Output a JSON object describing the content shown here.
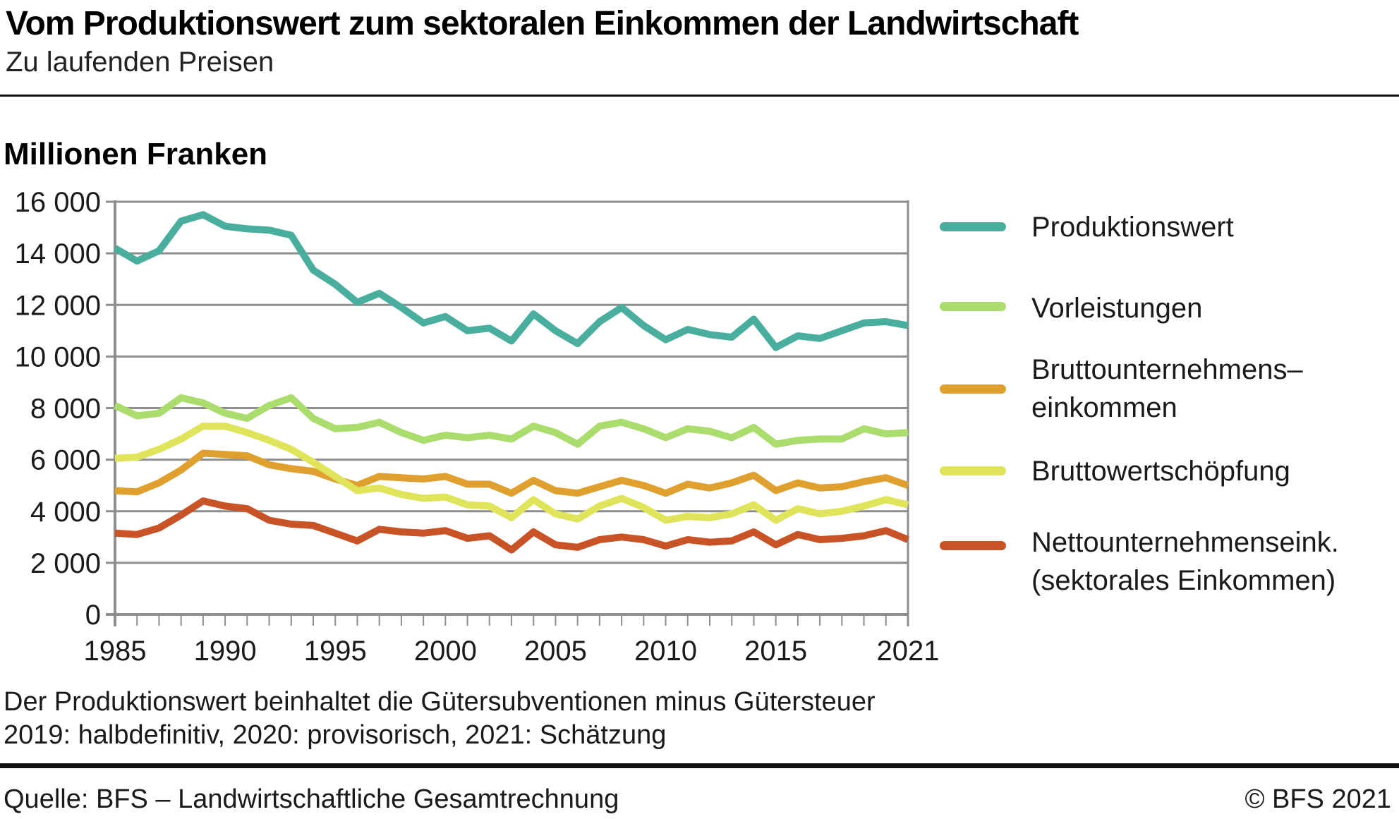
{
  "header": {
    "title": "Vom Produktionswert zum sektoralen Einkommen der Landwirtschaft",
    "subtitle": "Zu laufenden Preisen"
  },
  "unit_label": "Millionen Franken",
  "chart_data": {
    "type": "line",
    "title": "Vom Produktionswert zum sektoralen Einkommen der Landwirtschaft",
    "subtitle": "Zu laufenden Preisen",
    "ylabel": "Millionen Franken",
    "ylim": [
      0,
      16000
    ],
    "ytick_step": 2000,
    "ytick_labels": [
      "0",
      "2 000",
      "4 000",
      "6 000",
      "8 000",
      "10 000",
      "12 000",
      "14 000",
      "16 000"
    ],
    "grid": true,
    "legend_position": "right",
    "x_label_years": [
      1985,
      1990,
      1995,
      2000,
      2005,
      2010,
      2015,
      2021
    ],
    "years": [
      1985,
      1986,
      1987,
      1988,
      1989,
      1990,
      1991,
      1992,
      1993,
      1994,
      1995,
      1996,
      1997,
      1998,
      1999,
      2000,
      2001,
      2002,
      2003,
      2004,
      2005,
      2006,
      2007,
      2008,
      2009,
      2010,
      2011,
      2012,
      2013,
      2014,
      2015,
      2016,
      2017,
      2018,
      2019,
      2020,
      2021
    ],
    "series": [
      {
        "name": "Produktionswert",
        "legend_lines": [
          "Produktionswert"
        ],
        "color": "#4AAE9F",
        "values": [
          14200,
          13700,
          14100,
          15250,
          15500,
          15050,
          14950,
          14900,
          14700,
          13350,
          12800,
          12100,
          12450,
          11900,
          11300,
          11550,
          11000,
          11100,
          10600,
          11650,
          11000,
          10500,
          11350,
          11900,
          11200,
          10650,
          11050,
          10850,
          10750,
          11450,
          10350,
          10800,
          10700,
          11000,
          11300,
          11350,
          11200
        ]
      },
      {
        "name": "Vorleistungen",
        "legend_lines": [
          "Vorleistungen"
        ],
        "color": "#ABDC6E",
        "values": [
          8100,
          7700,
          7800,
          8400,
          8200,
          7800,
          7600,
          8100,
          8400,
          7600,
          7200,
          7250,
          7450,
          7050,
          6750,
          6950,
          6850,
          6950,
          6800,
          7300,
          7050,
          6600,
          7300,
          7450,
          7200,
          6850,
          7200,
          7100,
          6850,
          7250,
          6600,
          6750,
          6800,
          6800,
          7200,
          7000,
          7050
        ]
      },
      {
        "name": "Bruttounternehmenseinkommen",
        "legend_lines": [
          "Bruttounternehmens–",
          "einkommen"
        ],
        "color": "#DFA02F",
        "values": [
          4800,
          4750,
          5100,
          5600,
          6250,
          6200,
          6150,
          5800,
          5650,
          5550,
          5250,
          5000,
          5350,
          5300,
          5250,
          5350,
          5050,
          5050,
          4700,
          5200,
          4800,
          4700,
          4950,
          5200,
          5000,
          4700,
          5050,
          4900,
          5100,
          5400,
          4800,
          5100,
          4900,
          4950,
          5150,
          5300,
          5000
        ]
      },
      {
        "name": "Bruttowertschöpfung",
        "legend_lines": [
          "Bruttowertschöpfung"
        ],
        "color": "#DFE45A",
        "values": [
          6050,
          6100,
          6400,
          6800,
          7300,
          7300,
          7050,
          6750,
          6400,
          5900,
          5350,
          4800,
          4900,
          4650,
          4500,
          4550,
          4250,
          4200,
          3750,
          4450,
          3900,
          3700,
          4200,
          4500,
          4150,
          3650,
          3800,
          3750,
          3900,
          4250,
          3650,
          4100,
          3900,
          4000,
          4200,
          4450,
          4250
        ]
      },
      {
        "name": "Nettounternehmenseink. (sektorales Einkommen)",
        "legend_lines": [
          "Nettounternehmenseink.",
          "(sektorales Einkommen)"
        ],
        "color": "#C75327",
        "values": [
          3150,
          3100,
          3350,
          3850,
          4400,
          4200,
          4100,
          3650,
          3500,
          3450,
          3150,
          2850,
          3300,
          3200,
          3150,
          3250,
          2950,
          3050,
          2500,
          3200,
          2700,
          2600,
          2900,
          3000,
          2900,
          2650,
          2900,
          2800,
          2850,
          3200,
          2700,
          3100,
          2900,
          2950,
          3050,
          3250,
          2900
        ]
      }
    ]
  },
  "notes": {
    "line1": "Der Produktionswert beinhaltet die Gütersubventionen minus Gütersteuer",
    "line2": "2019: halbdefinitiv, 2020: provisorisch, 2021: Schätzung"
  },
  "source": {
    "left": "Quelle: BFS – Landwirtschaftliche Gesamtrechnung",
    "right": "© BFS 2021"
  }
}
